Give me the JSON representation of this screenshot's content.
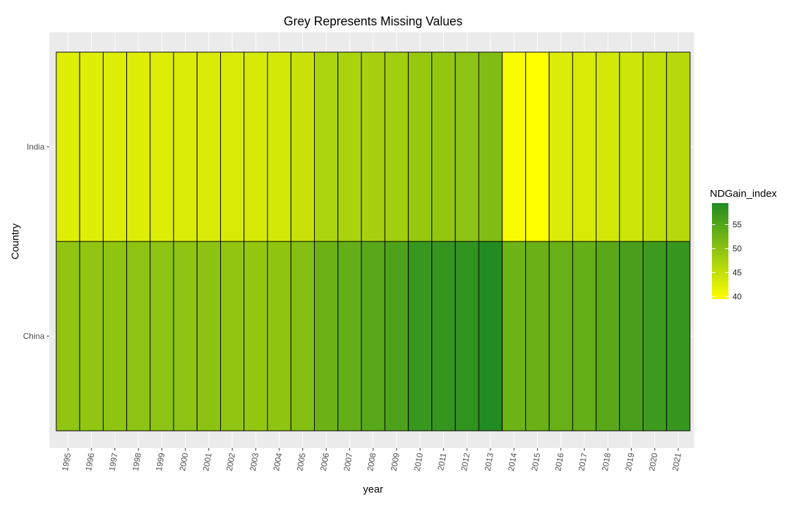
{
  "chart_data": {
    "type": "heatmap",
    "title": "Grey Represents Missing Values",
    "xlabel": "year",
    "ylabel": "Country",
    "x": [
      "1995",
      "1996",
      "1997",
      "1998",
      "1999",
      "2000",
      "2001",
      "2002",
      "2003",
      "2004",
      "2005",
      "2006",
      "2007",
      "2008",
      "2009",
      "2010",
      "2011",
      "2012",
      "2013",
      "2014",
      "2015",
      "2016",
      "2017",
      "2018",
      "2019",
      "2020",
      "2021"
    ],
    "y": [
      "China",
      "India"
    ],
    "values": {
      "India": [
        42.5,
        42.5,
        42.6,
        42.6,
        42.6,
        42.8,
        42.9,
        43.0,
        43.2,
        43.5,
        44.5,
        47.0,
        47.2,
        47.5,
        48.0,
        49.0,
        49.3,
        49.8,
        51.0,
        40.0,
        39.5,
        42.8,
        43.0,
        43.6,
        44.0,
        45.0,
        46.0
      ],
      "China": [
        49.5,
        49.5,
        49.6,
        49.8,
        49.8,
        49.8,
        49.9,
        49.5,
        49.2,
        49.6,
        50.5,
        52.8,
        53.5,
        54.5,
        55.5,
        57.5,
        57.8,
        58.2,
        59.5,
        52.5,
        53.0,
        53.2,
        53.5,
        54.5,
        56.0,
        57.0,
        57.6
      ]
    },
    "color_scale": {
      "name": "NDGain_index",
      "min": 39.5,
      "max": 59.5,
      "low_color": "#ffff00",
      "high_color": "#228b22",
      "ticks": [
        40,
        45,
        50,
        55
      ]
    },
    "missing_color": "#bebebe",
    "legend_position": "right",
    "grid": true,
    "panel_background": "#ebebeb"
  }
}
